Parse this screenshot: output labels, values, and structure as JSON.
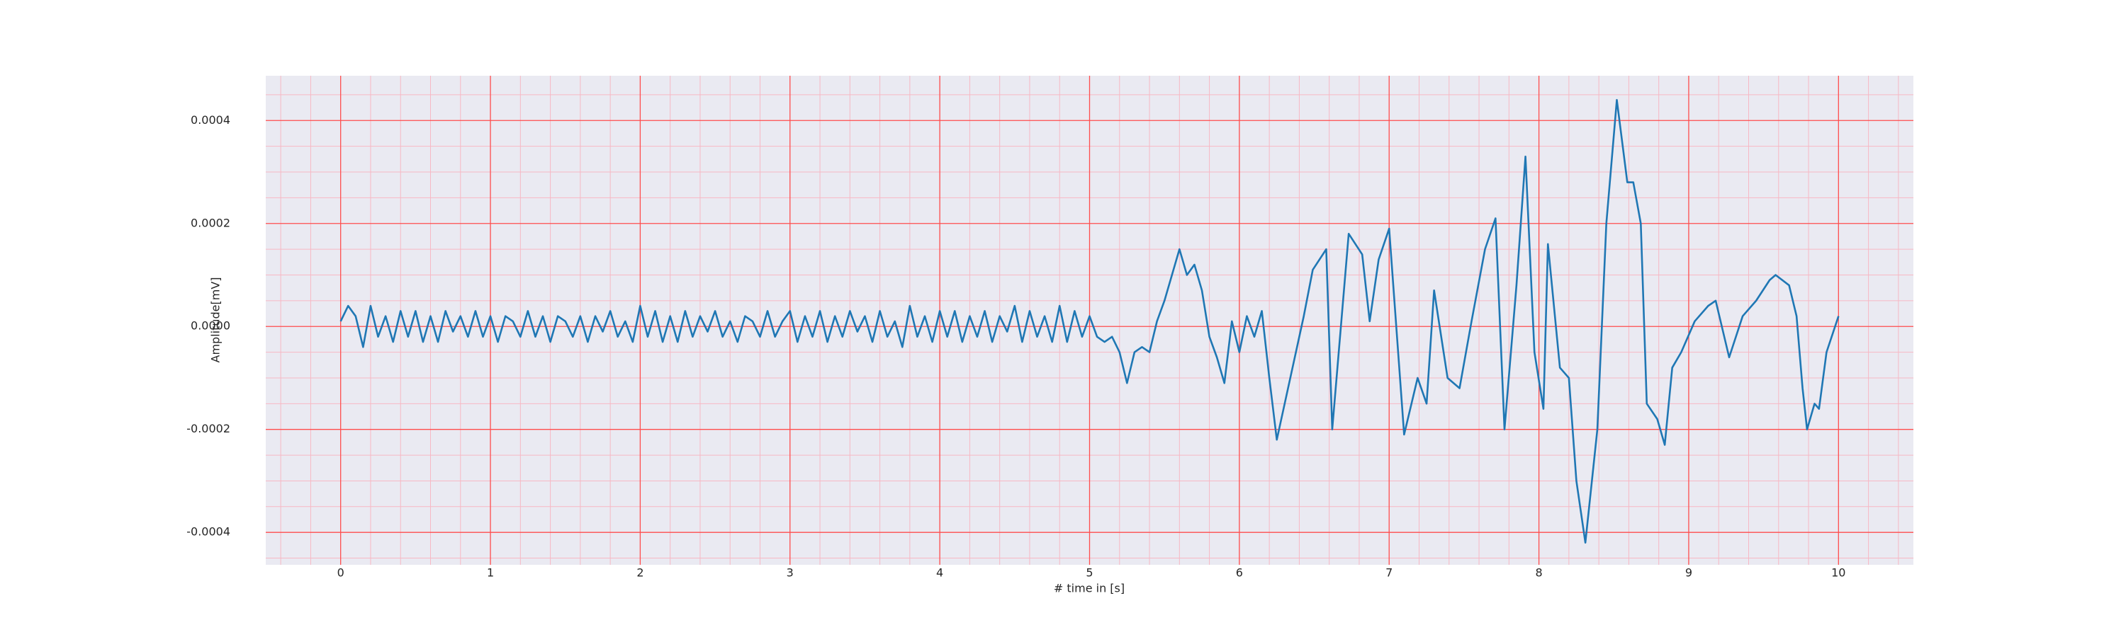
{
  "chart_data": {
    "type": "line",
    "xlabel": "# time in [s]",
    "ylabel": "Amplitude[mV]",
    "color": "#1f77b4",
    "background": "#eaeaf2",
    "grid": true,
    "grid_color": "#ff4d4d",
    "minor_grid": true,
    "minor_grid_color": "#f7b8c4",
    "xlim": [
      -0.5,
      10.5
    ],
    "ylim": [
      -0.000463,
      0.000487
    ],
    "xticks": [
      0,
      1,
      2,
      3,
      4,
      5,
      6,
      7,
      8,
      9,
      10
    ],
    "yticks": [
      -0.0004,
      -0.0002,
      {
        "value": 0,
        "label": "0.0000"
      },
      0.0002,
      0.0004
    ],
    "x": [
      0,
      0.05,
      0.1,
      0.15,
      0.2,
      0.25,
      0.3,
      0.35,
      0.4,
      0.45,
      0.5,
      0.55,
      0.6,
      0.65,
      0.7,
      0.75,
      0.8,
      0.85,
      0.9,
      0.95,
      1,
      1.05,
      1.1,
      1.15,
      1.2,
      1.25,
      1.3,
      1.35,
      1.4,
      1.45,
      1.5,
      1.55,
      1.6,
      1.65,
      1.7,
      1.75,
      1.8,
      1.85,
      1.9,
      1.95,
      2,
      2.05,
      2.1,
      2.15,
      2.2,
      2.25,
      2.3,
      2.35,
      2.4,
      2.45,
      2.5,
      2.55,
      2.6,
      2.65,
      2.7,
      2.75,
      2.8,
      2.85,
      2.9,
      2.95,
      3,
      3.05,
      3.1,
      3.15,
      3.2,
      3.25,
      3.3,
      3.35,
      3.4,
      3.45,
      3.5,
      3.55,
      3.6,
      3.65,
      3.7,
      3.75,
      3.8,
      3.85,
      3.9,
      3.95,
      4,
      4.05,
      4.1,
      4.15,
      4.2,
      4.25,
      4.3,
      4.35,
      4.4,
      4.45,
      4.5,
      4.55,
      4.6,
      4.65,
      4.7,
      4.75,
      4.8,
      4.85,
      4.9,
      4.95,
      5,
      5.05,
      5.1,
      5.15,
      5.2,
      5.25,
      5.3,
      5.35,
      5.4,
      5.45,
      5.5,
      5.55,
      5.6,
      5.65,
      5.7,
      5.75,
      5.8,
      5.85,
      5.9,
      5.95,
      6,
      6.05,
      6.1,
      6.15,
      6.2,
      6.25,
      6.43,
      6.49,
      6.58,
      6.62,
      6.73,
      6.82,
      6.87,
      6.93,
      7,
      7.1,
      7.19,
      7.25,
      7.3,
      7.39,
      7.47,
      7.55,
      7.64,
      7.71,
      7.77,
      7.85,
      7.91,
      7.97,
      8.03,
      8.06,
      8.14,
      8.2,
      8.25,
      8.31,
      8.39,
      8.45,
      8.52,
      8.59,
      8.63,
      8.68,
      8.72,
      8.79,
      8.84,
      8.89,
      8.95,
      9.04,
      9.13,
      9.18,
      9.27,
      9.36,
      9.45,
      9.54,
      9.58,
      9.67,
      9.72,
      9.76,
      9.79,
      9.84,
      9.87,
      9.92,
      10
    ],
    "values": [
      1e-05,
      4e-05,
      2e-05,
      -4e-05,
      4e-05,
      -2e-05,
      2e-05,
      -3e-05,
      3e-05,
      -2e-05,
      3e-05,
      -3e-05,
      2e-05,
      -3e-05,
      3e-05,
      -1e-05,
      2e-05,
      -2e-05,
      3e-05,
      -2e-05,
      2e-05,
      -3e-05,
      2e-05,
      1e-05,
      -2e-05,
      3e-05,
      -2e-05,
      2e-05,
      -3e-05,
      2e-05,
      1e-05,
      -2e-05,
      2e-05,
      -3e-05,
      2e-05,
      -1e-05,
      3e-05,
      -2e-05,
      1e-05,
      -3e-05,
      4e-05,
      -2e-05,
      3e-05,
      -3e-05,
      2e-05,
      -3e-05,
      3e-05,
      -2e-05,
      2e-05,
      -1e-05,
      3e-05,
      -2e-05,
      1e-05,
      -3e-05,
      2e-05,
      1e-05,
      -2e-05,
      3e-05,
      -2e-05,
      1e-05,
      3e-05,
      -3e-05,
      2e-05,
      -2e-05,
      3e-05,
      -3e-05,
      2e-05,
      -2e-05,
      3e-05,
      -1e-05,
      2e-05,
      -3e-05,
      3e-05,
      -2e-05,
      1e-05,
      -4e-05,
      4e-05,
      -2e-05,
      2e-05,
      -3e-05,
      3e-05,
      -2e-05,
      3e-05,
      -3e-05,
      2e-05,
      -2e-05,
      3e-05,
      -3e-05,
      2e-05,
      -1e-05,
      4e-05,
      -3e-05,
      3e-05,
      -2e-05,
      2e-05,
      -3e-05,
      4e-05,
      -3e-05,
      3e-05,
      -2e-05,
      2e-05,
      -2e-05,
      -3e-05,
      -2e-05,
      -5e-05,
      -0.00011,
      -5e-05,
      -4e-05,
      -5e-05,
      1e-05,
      5e-05,
      0.0001,
      0.00015,
      0.0001,
      0.00012,
      7e-05,
      -2e-05,
      -6e-05,
      -0.00011,
      1e-05,
      -5e-05,
      2e-05,
      -2e-05,
      3e-05,
      -0.0001,
      -0.00022,
      2e-05,
      0.00011,
      0.00015,
      -0.0002,
      0.00018,
      0.00014,
      1e-05,
      0.00013,
      0.00019,
      -0.00021,
      -0.0001,
      -0.00015,
      7e-05,
      -0.0001,
      -0.00012,
      1e-05,
      0.00015,
      0.00021,
      -0.0002,
      8e-05,
      0.00033,
      -5e-05,
      -0.00016,
      0.00016,
      -8e-05,
      -0.0001,
      -0.0003,
      -0.00042,
      -0.0002,
      0.0002,
      0.00044,
      0.00028,
      0.00028,
      0.0002,
      -0.00015,
      -0.00018,
      -0.00023,
      -8e-05,
      -5e-05,
      1e-05,
      4e-05,
      5e-05,
      -6e-05,
      2e-05,
      5e-05,
      9e-05,
      0.0001,
      8e-05,
      2e-05,
      -0.00012,
      -0.0002,
      -0.00015,
      -0.00016,
      -5e-05,
      2e-05
    ]
  }
}
